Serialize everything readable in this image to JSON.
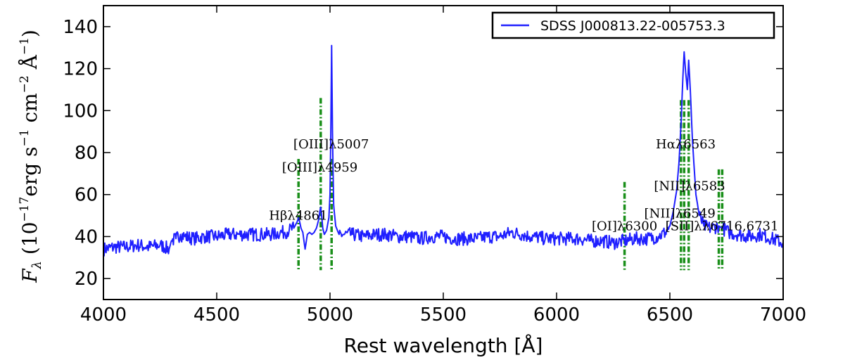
{
  "chart_data": {
    "type": "line",
    "xlabel": "Rest wavelength [Å]",
    "ylabel_parts": {
      "f": "F",
      "sub": "λ",
      "open": " (10",
      "exp1": "−17",
      "mid1": "erg s",
      "exp2": "−1",
      "mid2": " cm",
      "exp3": "−2",
      "mid3": " Å",
      "exp4": "−1",
      "close": ")"
    },
    "xlim": [
      4000,
      7000
    ],
    "ylim": [
      10,
      150
    ],
    "xticks": [
      4000,
      4500,
      5000,
      5500,
      6000,
      6500,
      7000
    ],
    "yticks": [
      20,
      40,
      60,
      80,
      100,
      120,
      140
    ],
    "legend_position": "top-right",
    "series": [
      {
        "name": "SDSS J000813.22-005753.3",
        "color": "#1f1fff",
        "x": [
          4000,
          4050,
          4100,
          4150,
          4200,
          4250,
          4290,
          4300,
          4320,
          4340,
          4360,
          4400,
          4450,
          4500,
          4550,
          4600,
          4650,
          4700,
          4750,
          4780,
          4800,
          4820,
          4840,
          4850,
          4855,
          4861,
          4866,
          4872,
          4880,
          4890,
          4900,
          4910,
          4920,
          4930,
          4940,
          4950,
          4955,
          4959,
          4963,
          4968,
          4975,
          4985,
          4995,
          5000,
          5003,
          5007,
          5011,
          5016,
          5025,
          5040,
          5060,
          5100,
          5150,
          5200,
          5250,
          5300,
          5350,
          5400,
          5450,
          5500,
          5550,
          5600,
          5650,
          5700,
          5750,
          5800,
          5850,
          5880,
          5900,
          5950,
          6000,
          6050,
          6100,
          6150,
          6200,
          6250,
          6300,
          6350,
          6400,
          6450,
          6480,
          6500,
          6515,
          6530,
          6540,
          6550,
          6557,
          6563,
          6570,
          6577,
          6583,
          6590,
          6600,
          6615,
          6630,
          6650,
          6680,
          6716,
          6731,
          6760,
          6800,
          6850,
          6900,
          6950,
          7000
        ],
        "y": [
          34,
          35,
          35,
          36,
          35,
          36,
          34,
          38,
          39,
          41,
          40,
          39,
          40,
          40,
          41,
          41,
          41,
          41,
          41,
          42,
          42,
          43,
          44,
          46,
          47,
          49,
          47,
          44,
          42,
          34,
          41,
          42,
          41,
          42,
          44,
          48,
          52,
          54,
          50,
          44,
          41,
          43,
          49,
          60,
          85,
          131,
          90,
          55,
          45,
          41,
          41,
          41,
          40,
          41,
          41,
          40,
          40,
          39,
          40,
          40,
          39,
          39,
          39,
          40,
          40,
          42,
          41,
          40,
          40,
          39,
          39,
          39,
          39,
          38,
          38,
          37,
          38,
          39,
          39,
          40,
          42,
          45,
          52,
          62,
          75,
          95,
          115,
          128,
          118,
          110,
          124,
          110,
          85,
          60,
          50,
          45,
          44,
          45,
          44,
          42,
          41,
          40,
          41,
          39,
          37
        ]
      }
    ],
    "lines": [
      {
        "label": "Hβλ4861",
        "x": 4861,
        "top": 77,
        "bottom": 24,
        "label_x": 4860,
        "label_y": 48
      },
      {
        "label": "[OIII]λ4959",
        "x": 4959,
        "top": 106,
        "bottom": 24,
        "label_x": 4955,
        "label_y": 71
      },
      {
        "label": "[OIII]λ5007",
        "x": 5007,
        "top": 77,
        "bottom": 24,
        "label_x": 5005,
        "label_y": 82
      },
      {
        "label": "[OI]λ6300",
        "x": 6300,
        "top": 66,
        "bottom": 24,
        "label_x": 6300,
        "label_y": 43
      },
      {
        "label": "[NII]λ6549",
        "x": 6549,
        "top": 105,
        "bottom": 24,
        "label_x": 6544,
        "label_y": 49
      },
      {
        "label": "Hαλ6563",
        "x": 6563,
        "top": 105,
        "bottom": 24,
        "label_x": 6570,
        "label_y": 82
      },
      {
        "label": "[NII]λ6583",
        "x": 6583,
        "top": 105,
        "bottom": 24,
        "label_x": 6587,
        "label_y": 62
      },
      {
        "label": "[SII]λλ6716,6731",
        "x": 6716,
        "top": 72,
        "bottom": 24,
        "label_x": 6730,
        "label_y": 43
      },
      {
        "label": "",
        "x": 6731,
        "top": 72,
        "bottom": 24,
        "label_x": 6731,
        "label_y": 43
      }
    ]
  }
}
